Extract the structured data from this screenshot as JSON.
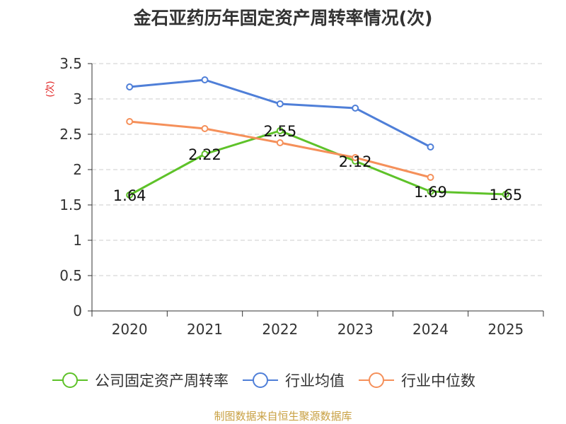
{
  "chart_data": {
    "type": "line",
    "title": "金石亚药历年固定资产周转率情况(次)",
    "ylabel": "(次)",
    "xlabel": "",
    "categories": [
      "2020",
      "2021",
      "2022",
      "2023",
      "2024",
      "2025"
    ],
    "ylim": [
      0,
      3.5
    ],
    "yticks": [
      "0",
      "0.5",
      "1",
      "1.5",
      "2",
      "2.5",
      "3",
      "3.5"
    ],
    "grid": true,
    "legend_position": "bottom",
    "series": [
      {
        "name": "公司固定资产周转率",
        "color": "#5ec229",
        "values": [
          1.64,
          2.22,
          2.55,
          2.12,
          1.69,
          1.65
        ],
        "labels": [
          "1.64",
          "2.22",
          "2.55",
          "2.12",
          "1.69",
          "1.65"
        ]
      },
      {
        "name": "行业均值",
        "color": "#4f7fd8",
        "values": [
          3.17,
          3.27,
          2.93,
          2.87,
          2.32,
          null
        ]
      },
      {
        "name": "行业中位数",
        "color": "#f5905a",
        "values": [
          2.68,
          2.58,
          2.38,
          2.17,
          1.89,
          null
        ]
      }
    ]
  },
  "source_text": "制图数据来自恒生聚源数据库"
}
